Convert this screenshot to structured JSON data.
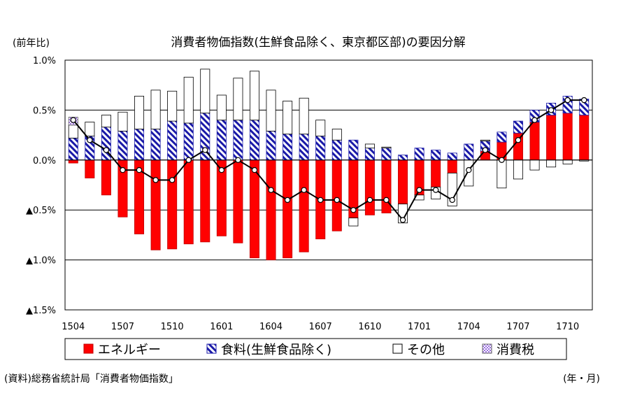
{
  "chart_data": {
    "type": "bar",
    "title": "消費者物価指数(生鮮食品除く、東京都区部)の要因分解",
    "unit_label": "(前年比)",
    "source": "(資料)総務省統計局「消費者物価指数」",
    "xlabel": "(年・月)",
    "ylim": [
      -1.5,
      1.0
    ],
    "y_ticks": [
      {
        "v": 1.0,
        "label": "1.0%"
      },
      {
        "v": 0.5,
        "label": "0.5%"
      },
      {
        "v": 0.0,
        "label": "0.0%"
      },
      {
        "v": -0.5,
        "label": "▲0.5%"
      },
      {
        "v": -1.0,
        "label": "▲1.0%"
      },
      {
        "v": -1.5,
        "label": "▲1.5%"
      }
    ],
    "x_tick_labels": [
      {
        "i": 0,
        "label": "1504"
      },
      {
        "i": 3,
        "label": "1507"
      },
      {
        "i": 6,
        "label": "1510"
      },
      {
        "i": 9,
        "label": "1601"
      },
      {
        "i": 12,
        "label": "1604"
      },
      {
        "i": 15,
        "label": "1607"
      },
      {
        "i": 18,
        "label": "1610"
      },
      {
        "i": 21,
        "label": "1701"
      },
      {
        "i": 24,
        "label": "1704"
      },
      {
        "i": 27,
        "label": "1707"
      },
      {
        "i": 30,
        "label": "1710"
      }
    ],
    "categories": [
      "1504",
      "1505",
      "1506",
      "1507",
      "1508",
      "1509",
      "1510",
      "1511",
      "1512",
      "1601",
      "1602",
      "1603",
      "1604",
      "1605",
      "1606",
      "1607",
      "1608",
      "1609",
      "1610",
      "1611",
      "1612",
      "1701",
      "1702",
      "1703",
      "1704",
      "1705",
      "1706",
      "1707",
      "1708",
      "1709",
      "1710",
      "1711"
    ],
    "series": [
      {
        "name": "エネルギー",
        "color": "#ff0000",
        "values": [
          -0.03,
          -0.18,
          -0.35,
          -0.57,
          -0.74,
          -0.9,
          -0.89,
          -0.84,
          -0.82,
          -0.76,
          -0.83,
          -0.98,
          -1.0,
          -0.98,
          -0.92,
          -0.79,
          -0.71,
          -0.58,
          -0.55,
          -0.53,
          -0.44,
          -0.35,
          -0.27,
          -0.13,
          0.0,
          0.09,
          0.18,
          0.27,
          0.38,
          0.45,
          0.47,
          0.45
        ]
      },
      {
        "name": "食料(生鮮食品除く)",
        "color": "#1a1aa8",
        "values": [
          0.22,
          0.24,
          0.33,
          0.29,
          0.31,
          0.31,
          0.39,
          0.37,
          0.47,
          0.4,
          0.4,
          0.4,
          0.29,
          0.26,
          0.26,
          0.24,
          0.2,
          0.2,
          0.12,
          0.12,
          0.05,
          0.12,
          0.1,
          0.07,
          0.16,
          0.1,
          0.1,
          0.12,
          0.12,
          0.12,
          0.17,
          0.16
        ]
      },
      {
        "name": "その他",
        "color": "#ffffff",
        "values": [
          0.13,
          0.14,
          0.12,
          0.19,
          0.33,
          0.39,
          0.3,
          0.46,
          0.44,
          0.25,
          0.42,
          0.49,
          0.41,
          0.33,
          0.36,
          0.16,
          0.11,
          -0.08,
          0.04,
          0.01,
          -0.19,
          -0.05,
          -0.12,
          -0.33,
          -0.26,
          0.01,
          -0.28,
          -0.19,
          -0.1,
          -0.07,
          -0.04,
          -0.01
        ]
      },
      {
        "name": "消費税",
        "color": "#c8a8ff",
        "values": [
          0.08,
          0,
          0,
          0,
          0,
          0,
          0,
          0,
          0,
          0,
          0,
          0,
          0,
          0,
          0,
          0,
          0,
          0,
          0,
          0,
          0,
          0,
          0,
          0,
          0,
          0,
          0,
          0,
          0,
          0,
          0,
          0
        ]
      }
    ],
    "total_line": [
      0.4,
      0.2,
      0.1,
      -0.1,
      -0.1,
      -0.2,
      -0.2,
      0.0,
      0.1,
      -0.1,
      0.0,
      -0.1,
      -0.3,
      -0.4,
      -0.3,
      -0.4,
      -0.4,
      -0.5,
      -0.4,
      -0.4,
      -0.6,
      -0.3,
      -0.3,
      -0.4,
      -0.1,
      0.1,
      0.0,
      0.2,
      0.4,
      0.5,
      0.6,
      0.6
    ]
  }
}
